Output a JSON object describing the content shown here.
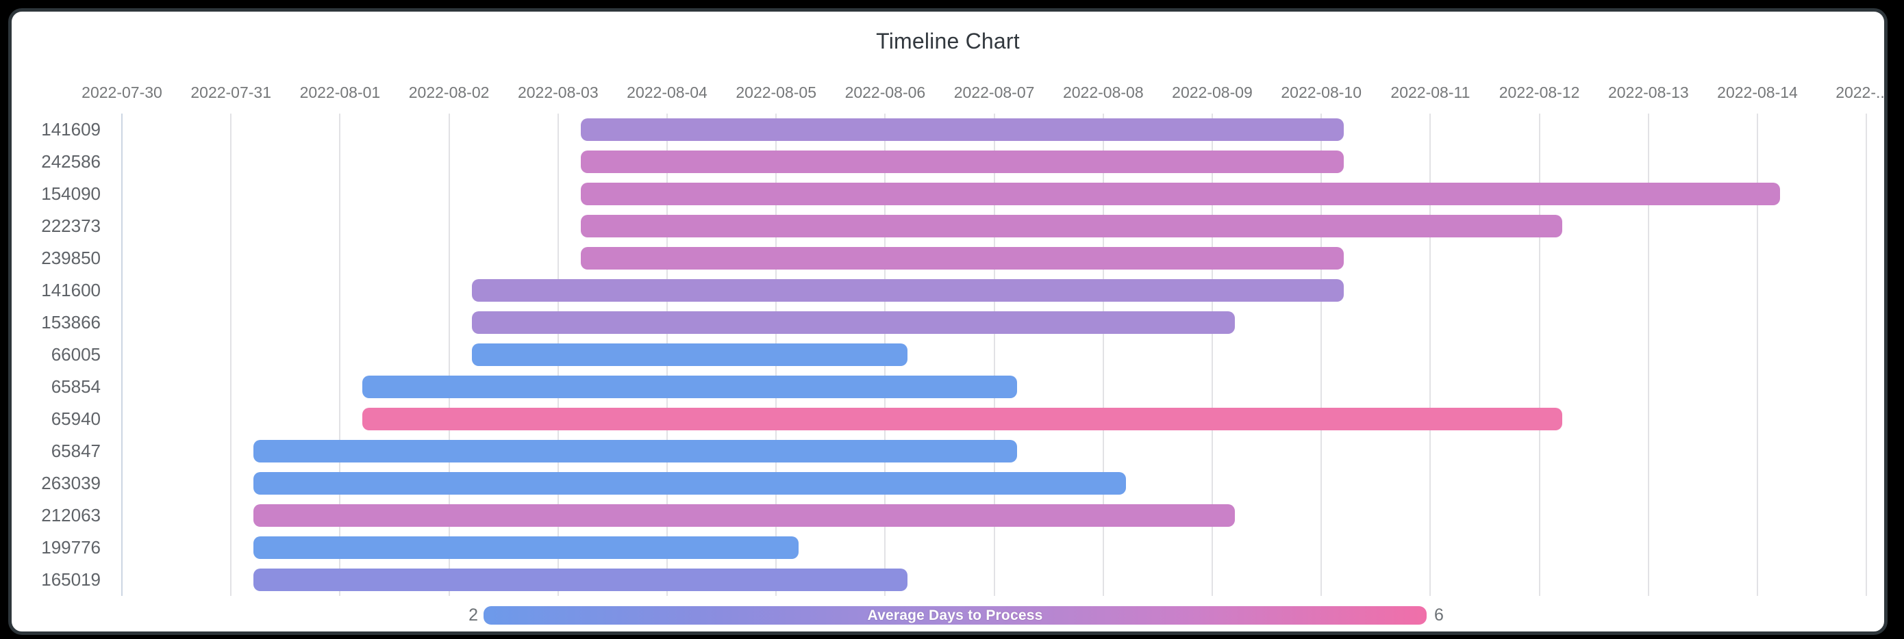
{
  "title": "Timeline Chart",
  "frame": {
    "background": "#000000",
    "card_background": "#ffffff",
    "card_border_color": "#2e363b"
  },
  "axis_colors": {
    "gridline": "#e2e2e5",
    "first_gridline": "#ccd6e3",
    "x_tick_label": "#757779",
    "y_tick_label": "#5f6368",
    "title_text": "#32383e"
  },
  "legend": {
    "label": "Average Days to Process",
    "min": "2",
    "max": "6",
    "gradient_stops": [
      "#6d9aea",
      "#8b8ddf",
      "#a98bd6",
      "#cb80c9",
      "#f06fa9"
    ],
    "text_color": "#ffffff",
    "minmax_label_color": "#6d7276"
  },
  "chart_data": {
    "type": "bar",
    "variant": "horizontal-timeline-gantt",
    "title": "Timeline Chart",
    "x_axis": {
      "base_date": "2022-07-30",
      "ticks": [
        "2022-07-30",
        "2022-07-31",
        "2022-08-01",
        "2022-08-02",
        "2022-08-03",
        "2022-08-04",
        "2022-08-05",
        "2022-08-06",
        "2022-08-07",
        "2022-08-08",
        "2022-08-09",
        "2022-08-10",
        "2022-08-11",
        "2022-08-12",
        "2022-08-13",
        "2022-08-14",
        "2022-..."
      ],
      "grid": true,
      "bar_start_offset_days": 0.21
    },
    "y_axis": {
      "categories": [
        "141609",
        "242586",
        "154090",
        "222373",
        "239850",
        "141600",
        "153866",
        "66005",
        "65854",
        "65940",
        "65847",
        "263039",
        "212063",
        "199776",
        "165019"
      ]
    },
    "legend": {
      "type": "gradient",
      "label": "Average Days to Process",
      "min": 2,
      "max": 6,
      "position": "bottom"
    },
    "tasks": [
      {
        "id": "141609",
        "start": "2022-08-03",
        "end": "2022-08-10",
        "duration_days": 7,
        "color": "#a78cd6",
        "avg_days_from_scale": 4
      },
      {
        "id": "242586",
        "start": "2022-08-03",
        "end": "2022-08-10",
        "duration_days": 7,
        "color": "#ca81c8",
        "avg_days_from_scale": 5
      },
      {
        "id": "154090",
        "start": "2022-08-03",
        "end": "2022-08-14",
        "duration_days": 11,
        "color": "#ca81c8",
        "avg_days_from_scale": 5
      },
      {
        "id": "222373",
        "start": "2022-08-03",
        "end": "2022-08-12",
        "duration_days": 9,
        "color": "#ca81c8",
        "avg_days_from_scale": 5
      },
      {
        "id": "239850",
        "start": "2022-08-03",
        "end": "2022-08-10",
        "duration_days": 7,
        "color": "#ca81c8",
        "avg_days_from_scale": 5
      },
      {
        "id": "141600",
        "start": "2022-08-02",
        "end": "2022-08-10",
        "duration_days": 8,
        "color": "#a78cd6",
        "avg_days_from_scale": 4
      },
      {
        "id": "153866",
        "start": "2022-08-02",
        "end": "2022-08-09",
        "duration_days": 7,
        "color": "#a78cd6",
        "avg_days_from_scale": 4
      },
      {
        "id": "66005",
        "start": "2022-08-02",
        "end": "2022-08-06",
        "duration_days": 4,
        "color": "#6d9fec",
        "avg_days_from_scale": 2
      },
      {
        "id": "65854",
        "start": "2022-08-01",
        "end": "2022-08-07",
        "duration_days": 6,
        "color": "#6d9fec",
        "avg_days_from_scale": 2
      },
      {
        "id": "65940",
        "start": "2022-08-01",
        "end": "2022-08-12",
        "duration_days": 11,
        "color": "#ef77ac",
        "avg_days_from_scale": 6
      },
      {
        "id": "65847",
        "start": "2022-07-31",
        "end": "2022-08-07",
        "duration_days": 7,
        "color": "#6d9fec",
        "avg_days_from_scale": 2
      },
      {
        "id": "263039",
        "start": "2022-07-31",
        "end": "2022-08-08",
        "duration_days": 8,
        "color": "#6d9fec",
        "avg_days_from_scale": 2
      },
      {
        "id": "212063",
        "start": "2022-07-31",
        "end": "2022-08-09",
        "duration_days": 9,
        "color": "#ca81c8",
        "avg_days_from_scale": 5
      },
      {
        "id": "199776",
        "start": "2022-07-31",
        "end": "2022-08-05",
        "duration_days": 5,
        "color": "#6d9fec",
        "avg_days_from_scale": 2
      },
      {
        "id": "165019",
        "start": "2022-07-31",
        "end": "2022-08-06",
        "duration_days": 6,
        "color": "#8c8fe0",
        "avg_days_from_scale": 3
      }
    ]
  }
}
